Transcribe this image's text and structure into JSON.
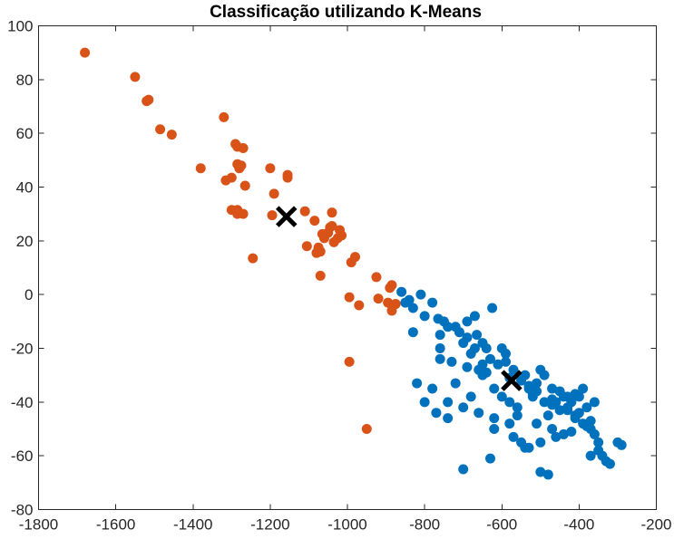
{
  "chart_data": {
    "type": "scatter",
    "title": "Classificação utilizando K-Means",
    "xlabel": "",
    "ylabel": "",
    "xlim": [
      -1800,
      -200
    ],
    "ylim": [
      -80,
      100
    ],
    "xticks": [
      -1800,
      -1600,
      -1400,
      -1200,
      -1000,
      -800,
      -600,
      -400,
      -200
    ],
    "yticks": [
      -80,
      -60,
      -40,
      -20,
      0,
      20,
      40,
      60,
      80,
      100
    ],
    "xtick_labels": [
      "-1800",
      "-1600",
      "-1400",
      "-1200",
      "-1000",
      "-800",
      "-600",
      "-400",
      "-200"
    ],
    "ytick_labels": [
      "-80",
      "-60",
      "-40",
      "-20",
      "0",
      "20",
      "40",
      "60",
      "80",
      "100"
    ],
    "grid": false,
    "series": [
      {
        "color": "#D95319",
        "x": [
          -1680,
          -1550,
          -1520,
          -1515,
          -1485,
          -1455,
          -1380,
          -1320,
          -1315,
          -1300,
          -1290,
          -1285,
          -1285,
          -1280,
          -1275,
          -1270,
          -1285,
          -1270,
          -1265,
          -1300,
          -1285,
          -1245,
          -1200,
          -1190,
          -1195,
          -1155,
          -1155,
          -1110,
          -1105,
          -1085,
          -1080,
          -1075,
          -1070,
          -1065,
          -1060,
          -1050,
          -1045,
          -1040,
          -1040,
          -1035,
          -1025,
          -1015,
          -1020,
          -1070,
          -995,
          -990,
          -980,
          -995,
          -970,
          -925,
          -920,
          -895,
          -890,
          -885,
          -885,
          -875,
          -950
        ],
        "y": [
          90,
          81,
          72,
          72.5,
          61.5,
          59.5,
          47,
          66,
          42.5,
          43.5,
          56,
          55,
          48.5,
          47,
          48,
          54.5,
          31.5,
          30,
          40.5,
          31.5,
          30,
          13.5,
          47,
          37.5,
          29.5,
          44.5,
          43.5,
          31,
          18,
          27.5,
          15.5,
          17.5,
          16,
          22.5,
          21,
          23,
          25,
          30.5,
          25.5,
          19.5,
          21,
          22,
          24,
          7,
          -1,
          12,
          14,
          -25,
          -4,
          6.5,
          -1.5,
          -3,
          2.5,
          3.5,
          -6,
          -3.5,
          -50
        ]
      },
      {
        "color": "#0072BD",
        "x": [
          -850,
          -830,
          -800,
          -765,
          -760,
          -760,
          -730,
          -720,
          -700,
          -690,
          -680,
          -670,
          -665,
          -660,
          -650,
          -640,
          -625,
          -620,
          -600,
          -590,
          -580,
          -560,
          -540,
          -530,
          -520,
          -510,
          -500,
          -490,
          -480,
          -470,
          -460,
          -450,
          -440,
          -430,
          -420,
          -410,
          -400,
          -390,
          -380,
          -370,
          -360,
          -350,
          -340,
          -330,
          -320,
          -300,
          -290,
          -860,
          -840,
          -810,
          -780,
          -750,
          -740,
          -710,
          -690,
          -670,
          -650,
          -630,
          -610,
          -590,
          -570,
          -550,
          -530,
          -510,
          -490,
          -470,
          -450,
          -430,
          -410,
          -390,
          -370,
          -350,
          -380,
          -420,
          -460,
          -500,
          -540,
          -580,
          -620,
          -660,
          -700,
          -740,
          -780,
          -820,
          -830,
          -760,
          -690,
          -640,
          -580,
          -520,
          -470,
          -430,
          -400,
          -360,
          -600,
          -650,
          -720,
          -680,
          -560,
          -510,
          -470,
          -440,
          -410,
          -370,
          -550,
          -500,
          -630,
          -700,
          -740,
          -770,
          -800,
          -620,
          -570,
          -530,
          -480
        ],
        "y": [
          -3,
          -5,
          -8,
          -9,
          -15,
          -20,
          -25,
          -12,
          -18,
          -10,
          -22,
          -8,
          -15,
          -28,
          -30,
          -20,
          -5,
          -35,
          -38,
          -25,
          -40,
          -42,
          -30,
          -35,
          -38,
          -33,
          -28,
          -30,
          -45,
          -35,
          -40,
          -36,
          -38,
          -42,
          -40,
          -45,
          -38,
          -35,
          -42,
          -47,
          -52,
          -58,
          -60,
          -62,
          -63,
          -55,
          -56,
          1,
          -2,
          0,
          -3,
          -10,
          -12,
          -14,
          -16,
          -20,
          -18,
          -24,
          -26,
          -22,
          -28,
          -32,
          -34,
          -36,
          -40,
          -41,
          -43,
          -38,
          -46,
          -48,
          -50,
          -55,
          -49,
          -51,
          -53,
          -55,
          -57,
          -48,
          -46,
          -44,
          -42,
          -40,
          -35,
          -33,
          -14,
          -24,
          -27,
          -29,
          -31,
          -37,
          -39,
          -43,
          -44,
          -40,
          -20,
          -26,
          -33,
          -38,
          -45,
          -48,
          -50,
          -52,
          -37,
          -60,
          -55,
          -66,
          -61,
          -65,
          -46,
          -44,
          -40,
          -50,
          -53,
          -57,
          -67
        ]
      },
      {
        "color": "#000000",
        "marker": "x",
        "x": [
          -1158,
          -575
        ],
        "y": [
          29,
          -32
        ]
      }
    ]
  }
}
